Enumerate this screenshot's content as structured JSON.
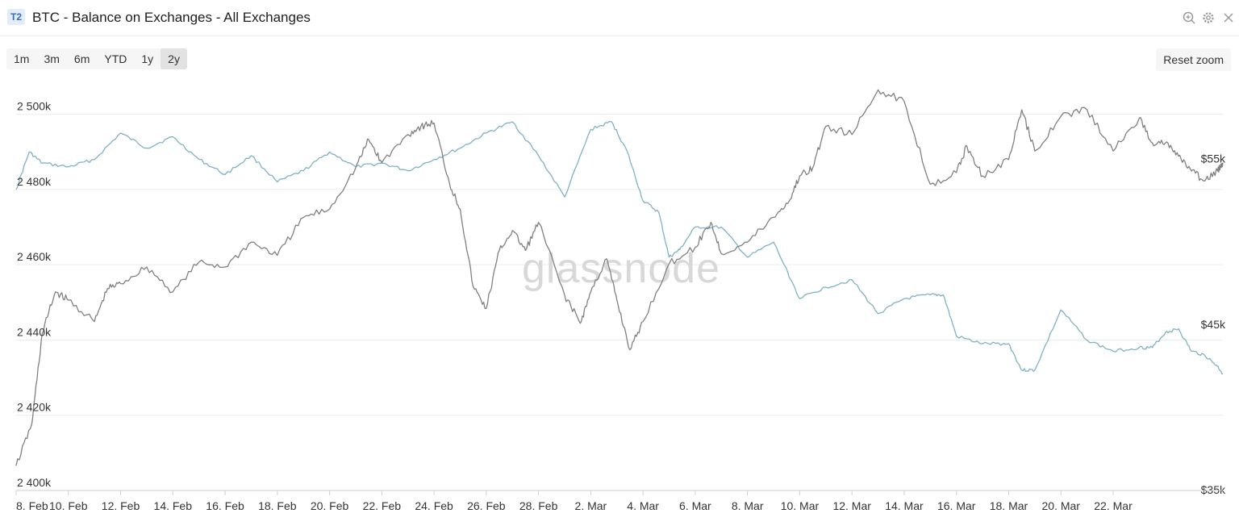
{
  "header": {
    "badge": "T2",
    "title": "BTC - Balance on Exchanges - All Exchanges",
    "icons": [
      "zoom-in-icon",
      "gear-icon",
      "close-icon"
    ]
  },
  "range_buttons": [
    {
      "label": "1m",
      "active": false
    },
    {
      "label": "3m",
      "active": false
    },
    {
      "label": "6m",
      "active": false
    },
    {
      "label": "YTD",
      "active": false
    },
    {
      "label": "1y",
      "active": false
    },
    {
      "label": "2y",
      "active": true
    }
  ],
  "reset_zoom_label": "Reset zoom",
  "watermark": "glassnode",
  "colors": {
    "balance_line": "#7fb2c4",
    "price_line": "#808080",
    "grid": "#ececec",
    "axis": "#cfcfcf"
  },
  "chart_data": {
    "type": "line",
    "title": "BTC - Balance on Exchanges - All Exchanges",
    "x_ticks": [
      "8. Feb",
      "10. Feb",
      "12. Feb",
      "14. Feb",
      "16. Feb",
      "18. Feb",
      "20. Feb",
      "22. Feb",
      "24. Feb",
      "26. Feb",
      "28. Feb",
      "2. Mar",
      "4. Mar",
      "6. Mar",
      "8. Mar",
      "10. Mar",
      "12. Mar",
      "14. Mar",
      "16. Mar",
      "18. Mar",
      "20. Mar",
      "22. Mar"
    ],
    "xlim": [
      0,
      46.2
    ],
    "y_left": {
      "ticks": [
        "2 400k",
        "2 420k",
        "2 440k",
        "2 460k",
        "2 480k",
        "2 500k"
      ],
      "ylim": [
        2400000,
        2510000
      ]
    },
    "y_right": {
      "ticks": [
        "$35k",
        "$45k",
        "$55k"
      ],
      "ylim": [
        35000,
        60000
      ]
    },
    "grid": true,
    "series": [
      {
        "axis": "left",
        "x": [
          0,
          0.5,
          1,
          2,
          3,
          4,
          5,
          6,
          7,
          8,
          9,
          10,
          11,
          12,
          13,
          14,
          15,
          16,
          17,
          18,
          19,
          20,
          21,
          22,
          22.8,
          23.4,
          24,
          24.6,
          25,
          25.4,
          26,
          27,
          28,
          29,
          30,
          31,
          32,
          33,
          34,
          35,
          35.5,
          36,
          37,
          38,
          38.5,
          39,
          40,
          41,
          42,
          43,
          43.5,
          44,
          44.5,
          45,
          45.5,
          46,
          46.2
        ],
        "y": [
          2480000,
          2490000,
          2487000,
          2486000,
          2488000,
          2495000,
          2491000,
          2494000,
          2488000,
          2484000,
          2489000,
          2482000,
          2485000,
          2490000,
          2486000,
          2487000,
          2485000,
          2488000,
          2491000,
          2495000,
          2498000,
          2489000,
          2478000,
          2496000,
          2498000,
          2490000,
          2477000,
          2474000,
          2462000,
          2464000,
          2470000,
          2470000,
          2462000,
          2466000,
          2451000,
          2454000,
          2456000,
          2447000,
          2451000,
          2452000,
          2452000,
          2441000,
          2439000,
          2439000,
          2432000,
          2432000,
          2448000,
          2440000,
          2437000,
          2438000,
          2438000,
          2442000,
          2443000,
          2437000,
          2436000,
          2433000,
          2431000
        ]
      },
      {
        "axis": "right",
        "x": [
          0,
          0.6,
          1,
          1.5,
          2,
          3,
          3.5,
          4,
          5,
          6,
          7,
          8,
          9,
          10,
          11,
          12,
          13,
          13.5,
          14,
          15,
          15.5,
          16,
          16.6,
          17,
          17.5,
          18,
          18.5,
          19,
          19.5,
          20,
          21,
          21.6,
          22,
          22.6,
          23,
          23.5,
          24,
          25,
          26,
          26.6,
          27,
          28,
          29,
          29.6,
          30,
          30.5,
          31,
          32,
          33,
          34,
          35,
          36,
          36.4,
          37,
          38,
          38.5,
          39,
          40,
          41,
          42,
          43,
          43.5,
          44,
          44.5,
          45,
          45.5,
          46,
          46.2
        ],
        "y": [
          36500,
          39000,
          44500,
          47000,
          46500,
          45200,
          47200,
          47500,
          48500,
          47000,
          48800,
          48500,
          50000,
          49200,
          51500,
          52000,
          54500,
          56200,
          54800,
          56500,
          57000,
          57200,
          53500,
          52000,
          47300,
          46000,
          49500,
          50700,
          49500,
          51200,
          46800,
          45100,
          47000,
          49000,
          46500,
          43500,
          45200,
          48700,
          49700,
          51200,
          49300,
          50000,
          51500,
          52500,
          54000,
          54500,
          57000,
          56500,
          59200,
          58500,
          53500,
          54200,
          55800,
          54000,
          55000,
          58000,
          55500,
          57600,
          58000,
          55500,
          57500,
          56000,
          56000,
          55200,
          54300,
          53700,
          54300,
          54800
        ]
      }
    ]
  }
}
